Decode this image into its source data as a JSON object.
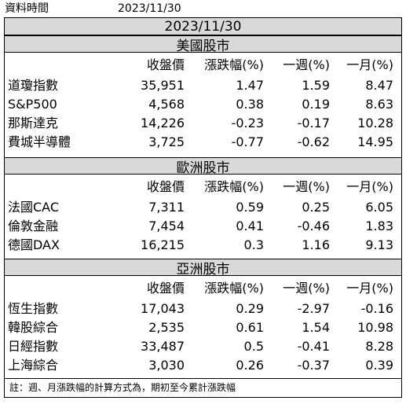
{
  "header": {
    "label": "資料時間",
    "date": "2023/11/30"
  },
  "title": "2023/11/30",
  "columns": [
    "收盤價",
    "漲跌幅(%)",
    "一週(%)",
    "一月(%)"
  ],
  "sections": [
    {
      "name": "美國股市",
      "rows": [
        {
          "name": "道瓊指數",
          "close": "35,951",
          "change": "1.47",
          "week": "1.59",
          "month": "8.47"
        },
        {
          "name": "S&P500",
          "close": "4,568",
          "change": "0.38",
          "week": "0.19",
          "month": "8.63"
        },
        {
          "name": "那斯達克",
          "close": "14,226",
          "change": "-0.23",
          "week": "-0.17",
          "month": "10.28"
        },
        {
          "name": "費城半導體",
          "close": "3,725",
          "change": "-0.77",
          "week": "-0.62",
          "month": "14.95"
        }
      ]
    },
    {
      "name": "歐洲股市",
      "rows": [
        {
          "name": "法國CAC",
          "close": "7,311",
          "change": "0.59",
          "week": "0.25",
          "month": "6.05"
        },
        {
          "name": "倫敦金融",
          "close": "7,454",
          "change": "0.41",
          "week": "-0.46",
          "month": "1.83"
        },
        {
          "name": "德國DAX",
          "close": "16,215",
          "change": "0.3",
          "week": "1.16",
          "month": "9.13"
        }
      ]
    },
    {
      "name": "亞洲股市",
      "rows": [
        {
          "name": "恆生指數",
          "close": "17,043",
          "change": "0.29",
          "week": "-2.97",
          "month": "-0.16"
        },
        {
          "name": "韓股綜合",
          "close": "2,535",
          "change": "0.61",
          "week": "1.54",
          "month": "10.98"
        },
        {
          "name": "日經指數",
          "close": "33,487",
          "change": "0.5",
          "week": "-0.41",
          "month": "8.28"
        },
        {
          "name": "上海綜合",
          "close": "3,030",
          "change": "0.26",
          "week": "-0.37",
          "month": "0.39"
        }
      ]
    }
  ],
  "note": "註：週、月漲跌幅的計算方式為，期初至今累計漲跌幅"
}
